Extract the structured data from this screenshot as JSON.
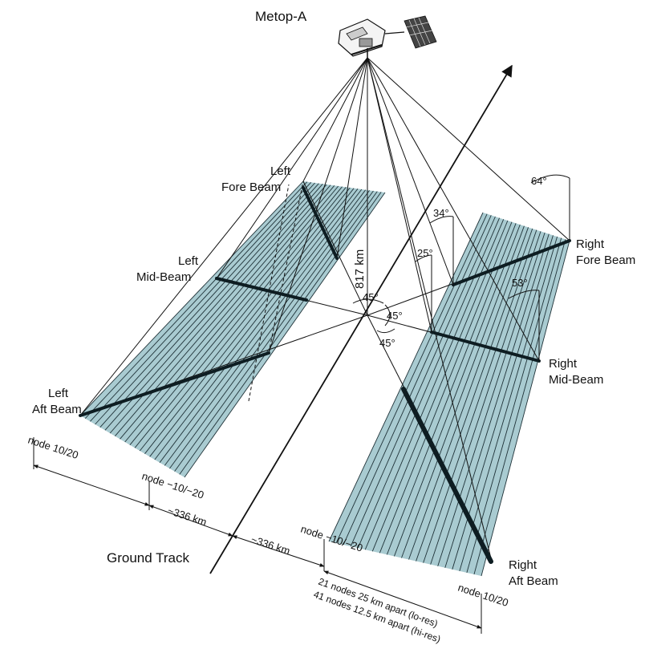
{
  "satellite": {
    "name": "Metop-A"
  },
  "ground_track": {
    "label": "Ground Track"
  },
  "altitude": {
    "label": "817 km"
  },
  "beams": {
    "left_fore": {
      "line1": "Left",
      "line2": "Fore Beam"
    },
    "left_mid": {
      "line1": "Left",
      "line2": "Mid-Beam"
    },
    "left_aft": {
      "line1": "Left",
      "line2": "Aft Beam"
    },
    "right_fore": {
      "line1": "Right",
      "line2": "Fore Beam"
    },
    "right_mid": {
      "line1": "Right",
      "line2": "Mid-Beam"
    },
    "right_aft": {
      "line1": "Right",
      "line2": "Aft Beam"
    }
  },
  "angles": {
    "a64": "64°",
    "a34": "34°",
    "a25": "25°",
    "a53": "53°",
    "az1": "45°",
    "az2": "45°",
    "az3": "45°"
  },
  "nodes": {
    "left_outer": "node 10/20",
    "left_inner": "node −10/−20",
    "right_inner": "node −10/−20",
    "right_outer": "node 10/20"
  },
  "distances": {
    "left_gap": "~336 km",
    "right_gap": "~336 km"
  },
  "swath_note": {
    "line1": "21 nodes 25 km apart (lo-res)",
    "line2": "41 nodes 12.5 km apart (hi-res)"
  },
  "colors": {
    "swath_fill": "#a9cbd1",
    "stripe": "#1f3238",
    "beam": "#0e1d22",
    "line": "#111111"
  }
}
